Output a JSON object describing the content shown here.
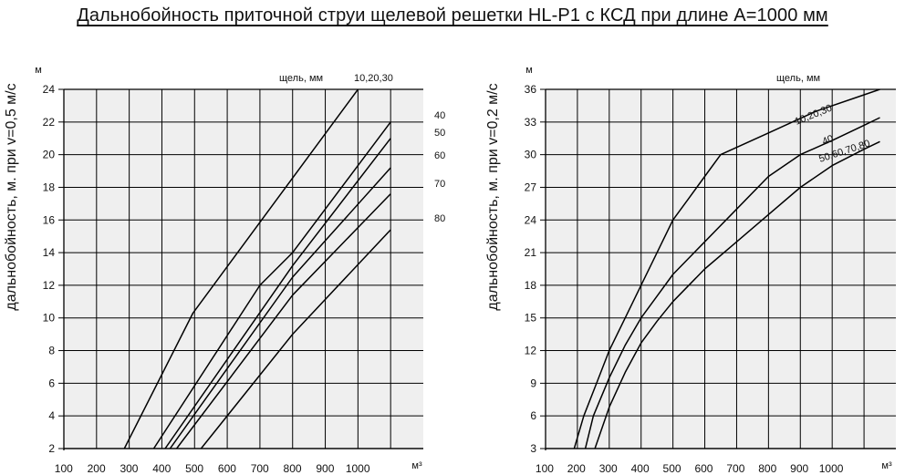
{
  "title": "Дальнобойность приточной струи щелевой решетки HL-P1 с КСД при длине A=1000 мм",
  "chart_data": [
    {
      "type": "line",
      "ylabel": "дальнобойность, м. при v=0,5 м/с",
      "yunit": "м",
      "xunit": "м³",
      "legend_title": "щель, мм",
      "xlim": [
        0,
        1050
      ],
      "ylim": [
        2,
        24
      ],
      "xticks": [
        100,
        200,
        300,
        400,
        500,
        600,
        700,
        800,
        900,
        1000
      ],
      "yticks": [
        2,
        4,
        6,
        8,
        10,
        12,
        14,
        16,
        18,
        20,
        22,
        24
      ],
      "grid": true,
      "series": [
        {
          "name": "10,20,30",
          "x": [
            185,
            395,
            900
          ],
          "y": [
            2,
            10.3,
            24
          ]
        },
        {
          "name": "40",
          "x": [
            275,
            600,
            700,
            1000
          ],
          "y": [
            2,
            12,
            14,
            22
          ]
        },
        {
          "name": "50",
          "x": [
            310,
            700,
            1000
          ],
          "y": [
            2,
            13.2,
            21
          ]
        },
        {
          "name": "60",
          "x": [
            325,
            700,
            1000
          ],
          "y": [
            2,
            12.5,
            19.2
          ]
        },
        {
          "name": "70",
          "x": [
            345,
            700,
            1000
          ],
          "y": [
            2,
            11.4,
            17.6
          ]
        },
        {
          "name": "80",
          "x": [
            420,
            700,
            1000
          ],
          "y": [
            2,
            9,
            15.4
          ]
        }
      ]
    },
    {
      "type": "line",
      "ylabel": "дальнобойность, м. при v=0,2 м/с",
      "yunit": "м",
      "xunit": "м³",
      "legend_title": "щель, мм",
      "xlim": [
        0,
        1050
      ],
      "ylim": [
        3,
        36
      ],
      "xticks": [
        100,
        200,
        300,
        400,
        500,
        600,
        700,
        800,
        900,
        1000
      ],
      "yticks": [
        3,
        6,
        9,
        12,
        15,
        18,
        21,
        24,
        27,
        30,
        33,
        36
      ],
      "grid": true,
      "series": [
        {
          "name": "10,20,30",
          "x": [
            90,
            120,
            160,
            200,
            250,
            300,
            350,
            400,
            450,
            500,
            550,
            700,
            850,
            1000,
            1050
          ],
          "y": [
            3,
            6,
            9,
            12,
            15,
            18,
            21,
            24,
            26,
            28,
            30,
            32,
            34,
            35.5,
            36
          ]
        },
        {
          "name": "40",
          "x": [
            125,
            150,
            200,
            250,
            300,
            350,
            400,
            500,
            600,
            700,
            800,
            900,
            1000,
            1050
          ],
          "y": [
            3,
            6,
            9.5,
            12.5,
            15,
            17,
            19,
            22,
            25,
            28,
            30,
            31.3,
            32.7,
            33.4
          ]
        },
        {
          "name": "50,60,70,80",
          "x": [
            155,
            200,
            250,
            300,
            350,
            400,
            500,
            600,
            700,
            800,
            900,
            1000,
            1050
          ],
          "y": [
            3,
            6.8,
            10,
            12.7,
            14.7,
            16.5,
            19.5,
            22,
            24.5,
            27,
            29,
            30.5,
            31.2
          ]
        }
      ]
    }
  ]
}
